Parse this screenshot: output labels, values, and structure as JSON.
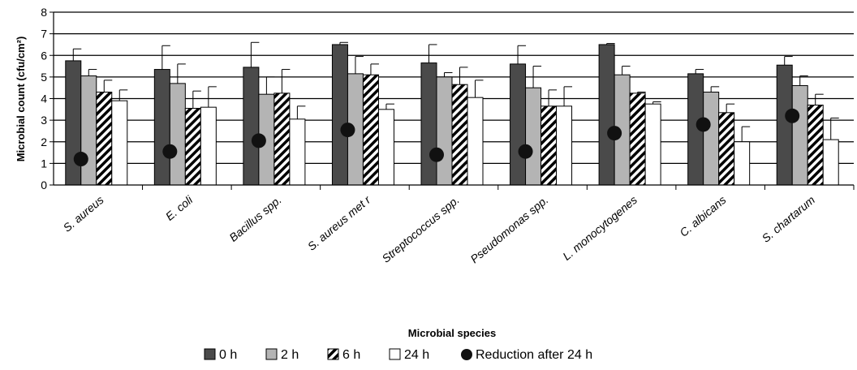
{
  "chart_data": {
    "type": "bar",
    "xlabel": "Microbial species",
    "ylabel": "Microbial count (cfu/cm²)",
    "ylim": [
      0,
      8
    ],
    "yticks": [
      0,
      1,
      2,
      3,
      4,
      5,
      6,
      7,
      8
    ],
    "grid": "horizontal",
    "legend_position": "bottom",
    "categories": [
      "S. aureus",
      "E. coli",
      "Bacillus spp.",
      "S. aureus met r",
      "Streptococcus spp.",
      "Pseudomonas spp.",
      "L. monocytogenes",
      "C. albicans",
      "S. chartarum"
    ],
    "series": [
      {
        "name": "0 h",
        "fill": "solid",
        "color": "#4a4a4a",
        "values": [
          5.75,
          5.35,
          5.45,
          6.5,
          5.65,
          5.6,
          6.5,
          5.15,
          5.55
        ],
        "errors": [
          0.55,
          1.1,
          1.15,
          0.1,
          0.85,
          0.85,
          0.05,
          0.2,
          0.4
        ]
      },
      {
        "name": "2 h",
        "fill": "solid",
        "color": "#b4b4b4",
        "values": [
          5.05,
          4.7,
          4.2,
          5.15,
          5.0,
          4.5,
          5.1,
          4.3,
          4.6
        ],
        "errors": [
          0.3,
          0.9,
          0.8,
          0.8,
          0.2,
          1.0,
          0.4,
          0.25,
          0.45
        ]
      },
      {
        "name": "6 h",
        "fill": "hatch",
        "color": "#000000",
        "values": [
          4.3,
          3.55,
          4.25,
          5.1,
          4.65,
          3.65,
          4.25,
          3.35,
          3.7
        ],
        "errors": [
          0.55,
          0.8,
          1.1,
          0.5,
          0.8,
          0.75,
          0.05,
          0.4,
          0.5
        ]
      },
      {
        "name": "24 h",
        "fill": "solid",
        "color": "#ffffff",
        "values": [
          3.9,
          3.6,
          3.05,
          3.5,
          4.05,
          3.65,
          3.75,
          2.0,
          2.1
        ],
        "errors": [
          0.5,
          0.95,
          0.6,
          0.25,
          0.8,
          0.9,
          0.1,
          0.7,
          1.0
        ]
      },
      {
        "name": "Reduction after 24 h",
        "type": "scatter",
        "color": "#111111",
        "values": [
          1.2,
          1.55,
          2.05,
          2.55,
          1.4,
          1.55,
          2.4,
          2.8,
          3.2
        ]
      }
    ]
  }
}
